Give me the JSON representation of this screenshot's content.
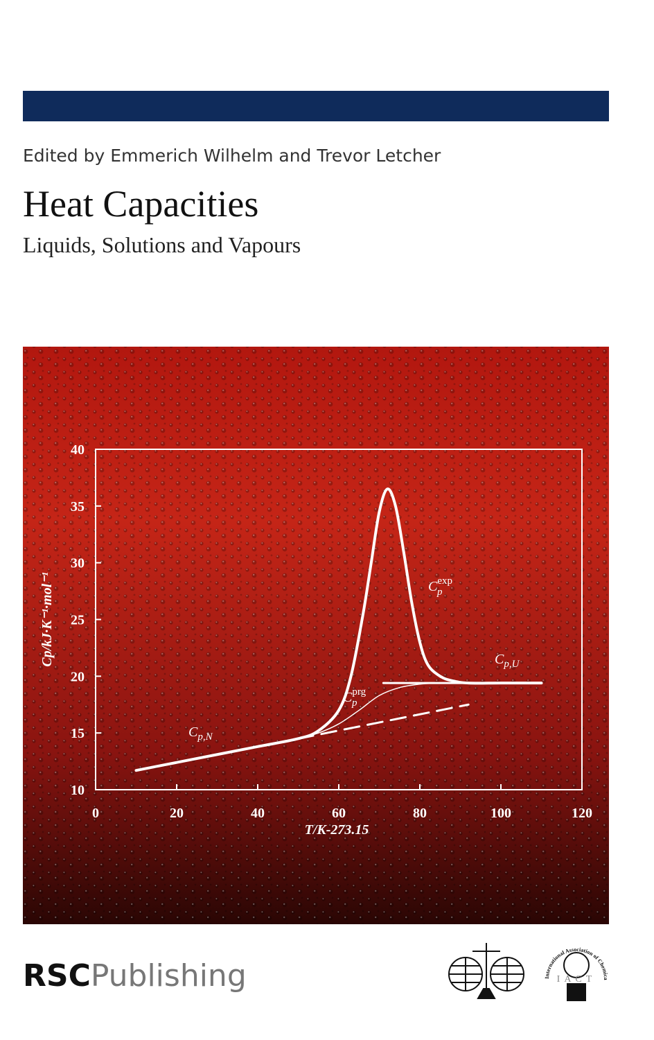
{
  "header": {
    "editors": "Edited by Emmerich Wilhelm and Trevor Letcher",
    "title": "Heat Capacities",
    "subtitle": "Liquids, Solutions and Vapours"
  },
  "chart_data": {
    "type": "line",
    "x_label": "T/K-273.15",
    "y_label": "Cp/kJ·K⁻¹·mol⁻¹",
    "xlim": [
      0,
      120
    ],
    "xticks": [
      0,
      20,
      40,
      60,
      80,
      100,
      120
    ],
    "ylim": [
      10,
      40
    ],
    "yticks": [
      10,
      15,
      20,
      25,
      30,
      35,
      40
    ],
    "series": [
      {
        "color": "#ffffff",
        "width": 4,
        "dashed": false,
        "x": [
          10,
          20,
          30,
          40,
          50,
          55,
          60,
          63,
          66,
          68,
          70,
          72,
          74,
          76,
          78,
          80,
          82,
          85,
          88,
          92,
          100,
          110
        ],
        "values": [
          11.7,
          12.4,
          13.1,
          13.8,
          14.5,
          15.2,
          17,
          20,
          25.5,
          30,
          34.5,
          36.5,
          35,
          31,
          26.5,
          23,
          21,
          20,
          19.6,
          19.4,
          19.4,
          19.4
        ]
      },
      {
        "color": "#ffffff",
        "width": 3,
        "dashed": false,
        "x": [
          71,
          110
        ],
        "values": [
          19.4,
          19.4
        ]
      },
      {
        "color": "#ffffff",
        "width": 1.5,
        "dashed": false,
        "x": [
          50,
          55,
          60,
          65,
          70,
          75,
          80,
          84
        ],
        "values": [
          14.5,
          15,
          15.8,
          17,
          18.3,
          19,
          19.3,
          19.4
        ]
      },
      {
        "color": "#ffffff",
        "width": 3,
        "dashed": true,
        "x": [
          50,
          92
        ],
        "values": [
          14.5,
          17.5
        ]
      }
    ],
    "annotations": [
      {
        "base": "C",
        "sub": "p,N"
      },
      {
        "base": "C",
        "sub": "p",
        "sup": "prg"
      },
      {
        "base": "C",
        "sub": "p",
        "sup": "exp"
      },
      {
        "base": "C",
        "sub": "p,U"
      }
    ]
  },
  "footer": {
    "rsc": "RSC",
    "publishing": "Publishing",
    "iact": "International Association of Chemical Thermodynamics",
    "iact_letters": "IACT"
  }
}
